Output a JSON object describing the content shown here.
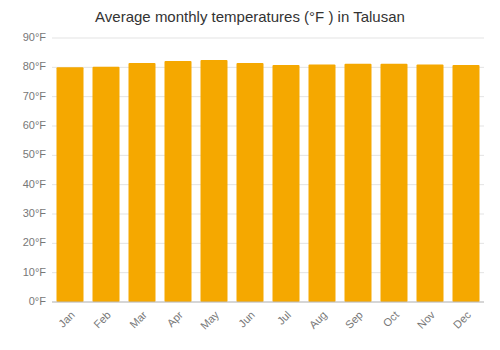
{
  "chart_data": {
    "type": "bar",
    "title": "Average monthly temperatures (°F ) in Talusan",
    "categories": [
      "Jan",
      "Feb",
      "Mar",
      "Apr",
      "May",
      "Jun",
      "Jul",
      "Aug",
      "Sep",
      "Oct",
      "Nov",
      "Dec"
    ],
    "values": [
      80.0,
      80.2,
      81.5,
      82.2,
      82.5,
      81.5,
      80.8,
      81.0,
      81.2,
      81.2,
      81.0,
      80.8
    ],
    "color": "#F5A800",
    "ylim": [
      0,
      90
    ],
    "yticks": [
      {
        "value": 0,
        "label": "0°F"
      },
      {
        "value": 10,
        "label": "10°F"
      },
      {
        "value": 20,
        "label": "20°F"
      },
      {
        "value": 30,
        "label": "30°F"
      },
      {
        "value": 40,
        "label": "40°F"
      },
      {
        "value": 50,
        "label": "50°F"
      },
      {
        "value": 60,
        "label": "60°F"
      },
      {
        "value": 70,
        "label": "70°F"
      },
      {
        "value": 80,
        "label": "80°F"
      },
      {
        "value": 90,
        "label": "90°F"
      }
    ],
    "grid": true
  }
}
